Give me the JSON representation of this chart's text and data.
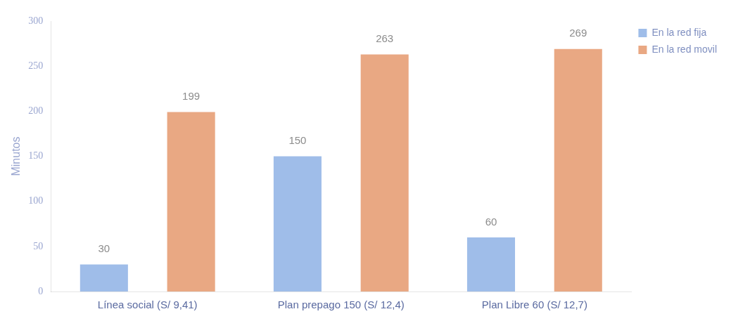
{
  "chart_data": {
    "type": "bar",
    "ylabel": "Minutos",
    "categories": [
      "Línea social (S/ 9,41)",
      "Plan prepago 150 (S/ 12,4)",
      "Plan Libre 60 (S/ 12,7)"
    ],
    "series": [
      {
        "name": "En la red fija",
        "color": "#9fbde9",
        "values": [
          30,
          150,
          60
        ]
      },
      {
        "name": "En la red movil",
        "color": "#e9a883",
        "values": [
          199,
          263,
          269
        ]
      }
    ],
    "ylim": [
      0,
      300
    ],
    "yticks": [
      0,
      50,
      100,
      150,
      200,
      250,
      300
    ],
    "grid": false,
    "legend": "top right",
    "data_labels": true
  }
}
